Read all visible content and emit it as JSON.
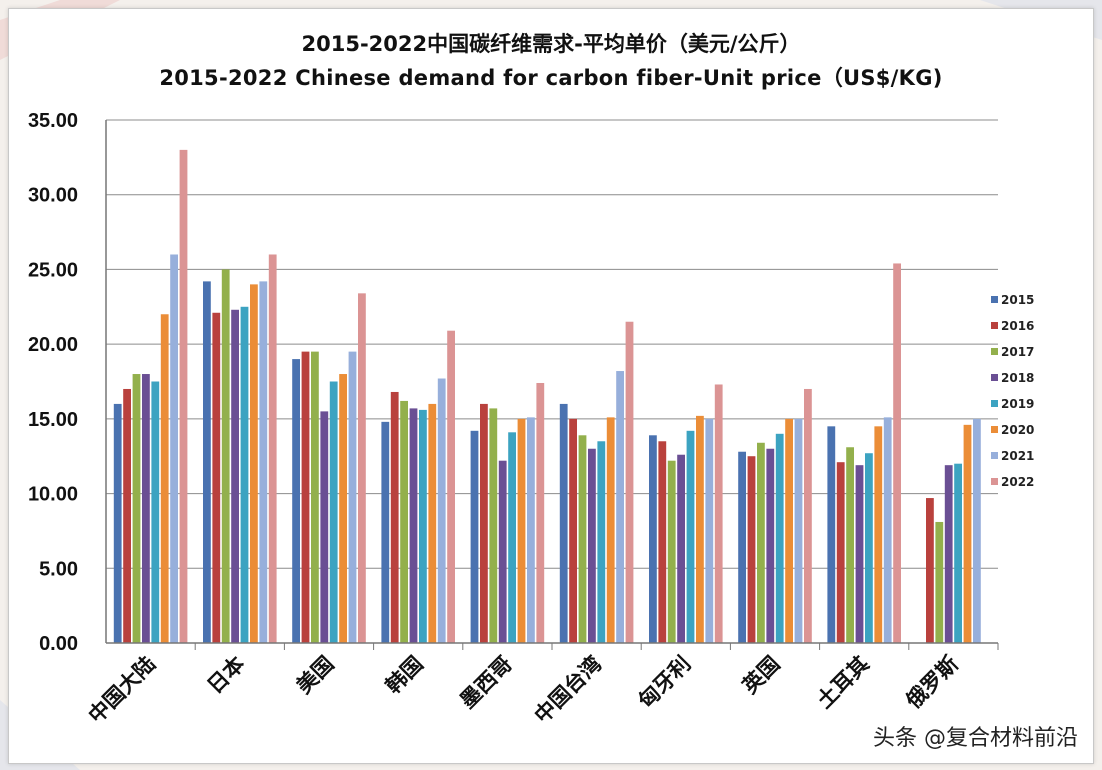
{
  "title_cn": "2015-2022中国碳纤维需求-平均单价（美元/公斤）",
  "title_en": "2015-2022 Chinese demand for carbon fiber-Unit price（US$/KG)",
  "watermark": "头条 @复合材料前沿",
  "chart_data": {
    "type": "bar",
    "title": "2015-2022中国碳纤维需求-平均单价（美元/公斤）",
    "subtitle": "2015-2022 Chinese demand for carbon fiber-Unit price（US$/KG)",
    "xlabel": "",
    "ylabel": "",
    "ylim": [
      0,
      35
    ],
    "ytick_labels": [
      "0.00",
      "5.00",
      "10.00",
      "15.00",
      "20.00",
      "25.00",
      "30.00",
      "35.00"
    ],
    "grid": true,
    "legend_position": "right",
    "categories": [
      "中国大陆",
      "日本",
      "美国",
      "韩国",
      "墨西哥",
      "中国台湾",
      "匈牙利",
      "英国",
      "土耳其",
      "俄罗斯"
    ],
    "series": [
      {
        "name": "2015",
        "color": "#4a72b0",
        "values": [
          16.0,
          24.2,
          19.0,
          14.8,
          14.2,
          16.0,
          13.9,
          12.8,
          14.5,
          null
        ]
      },
      {
        "name": "2016",
        "color": "#b9413d",
        "values": [
          17.0,
          22.1,
          19.5,
          16.8,
          16.0,
          15.0,
          13.5,
          12.5,
          12.1,
          9.7
        ]
      },
      {
        "name": "2017",
        "color": "#93b04c",
        "values": [
          18.0,
          25.0,
          19.5,
          16.2,
          15.7,
          13.9,
          12.2,
          13.4,
          13.1,
          8.1
        ]
      },
      {
        "name": "2018",
        "color": "#6a4f94",
        "values": [
          18.0,
          22.3,
          15.5,
          15.7,
          12.2,
          13.0,
          12.6,
          13.0,
          11.9,
          11.9
        ]
      },
      {
        "name": "2019",
        "color": "#3ca3c1",
        "values": [
          17.5,
          22.5,
          17.5,
          15.6,
          14.1,
          13.5,
          14.2,
          14.0,
          12.7,
          12.0
        ]
      },
      {
        "name": "2020",
        "color": "#eb8d37",
        "values": [
          22.0,
          24.0,
          18.0,
          16.0,
          15.0,
          15.1,
          15.2,
          15.0,
          14.5,
          14.6
        ]
      },
      {
        "name": "2021",
        "color": "#97afdb",
        "values": [
          26.0,
          24.2,
          19.5,
          17.7,
          15.1,
          18.2,
          15.0,
          15.0,
          15.1,
          15.0
        ]
      },
      {
        "name": "2022",
        "color": "#db9494",
        "values": [
          33.0,
          26.0,
          23.4,
          20.9,
          17.4,
          21.5,
          17.3,
          17.0,
          25.4,
          null
        ]
      }
    ]
  }
}
